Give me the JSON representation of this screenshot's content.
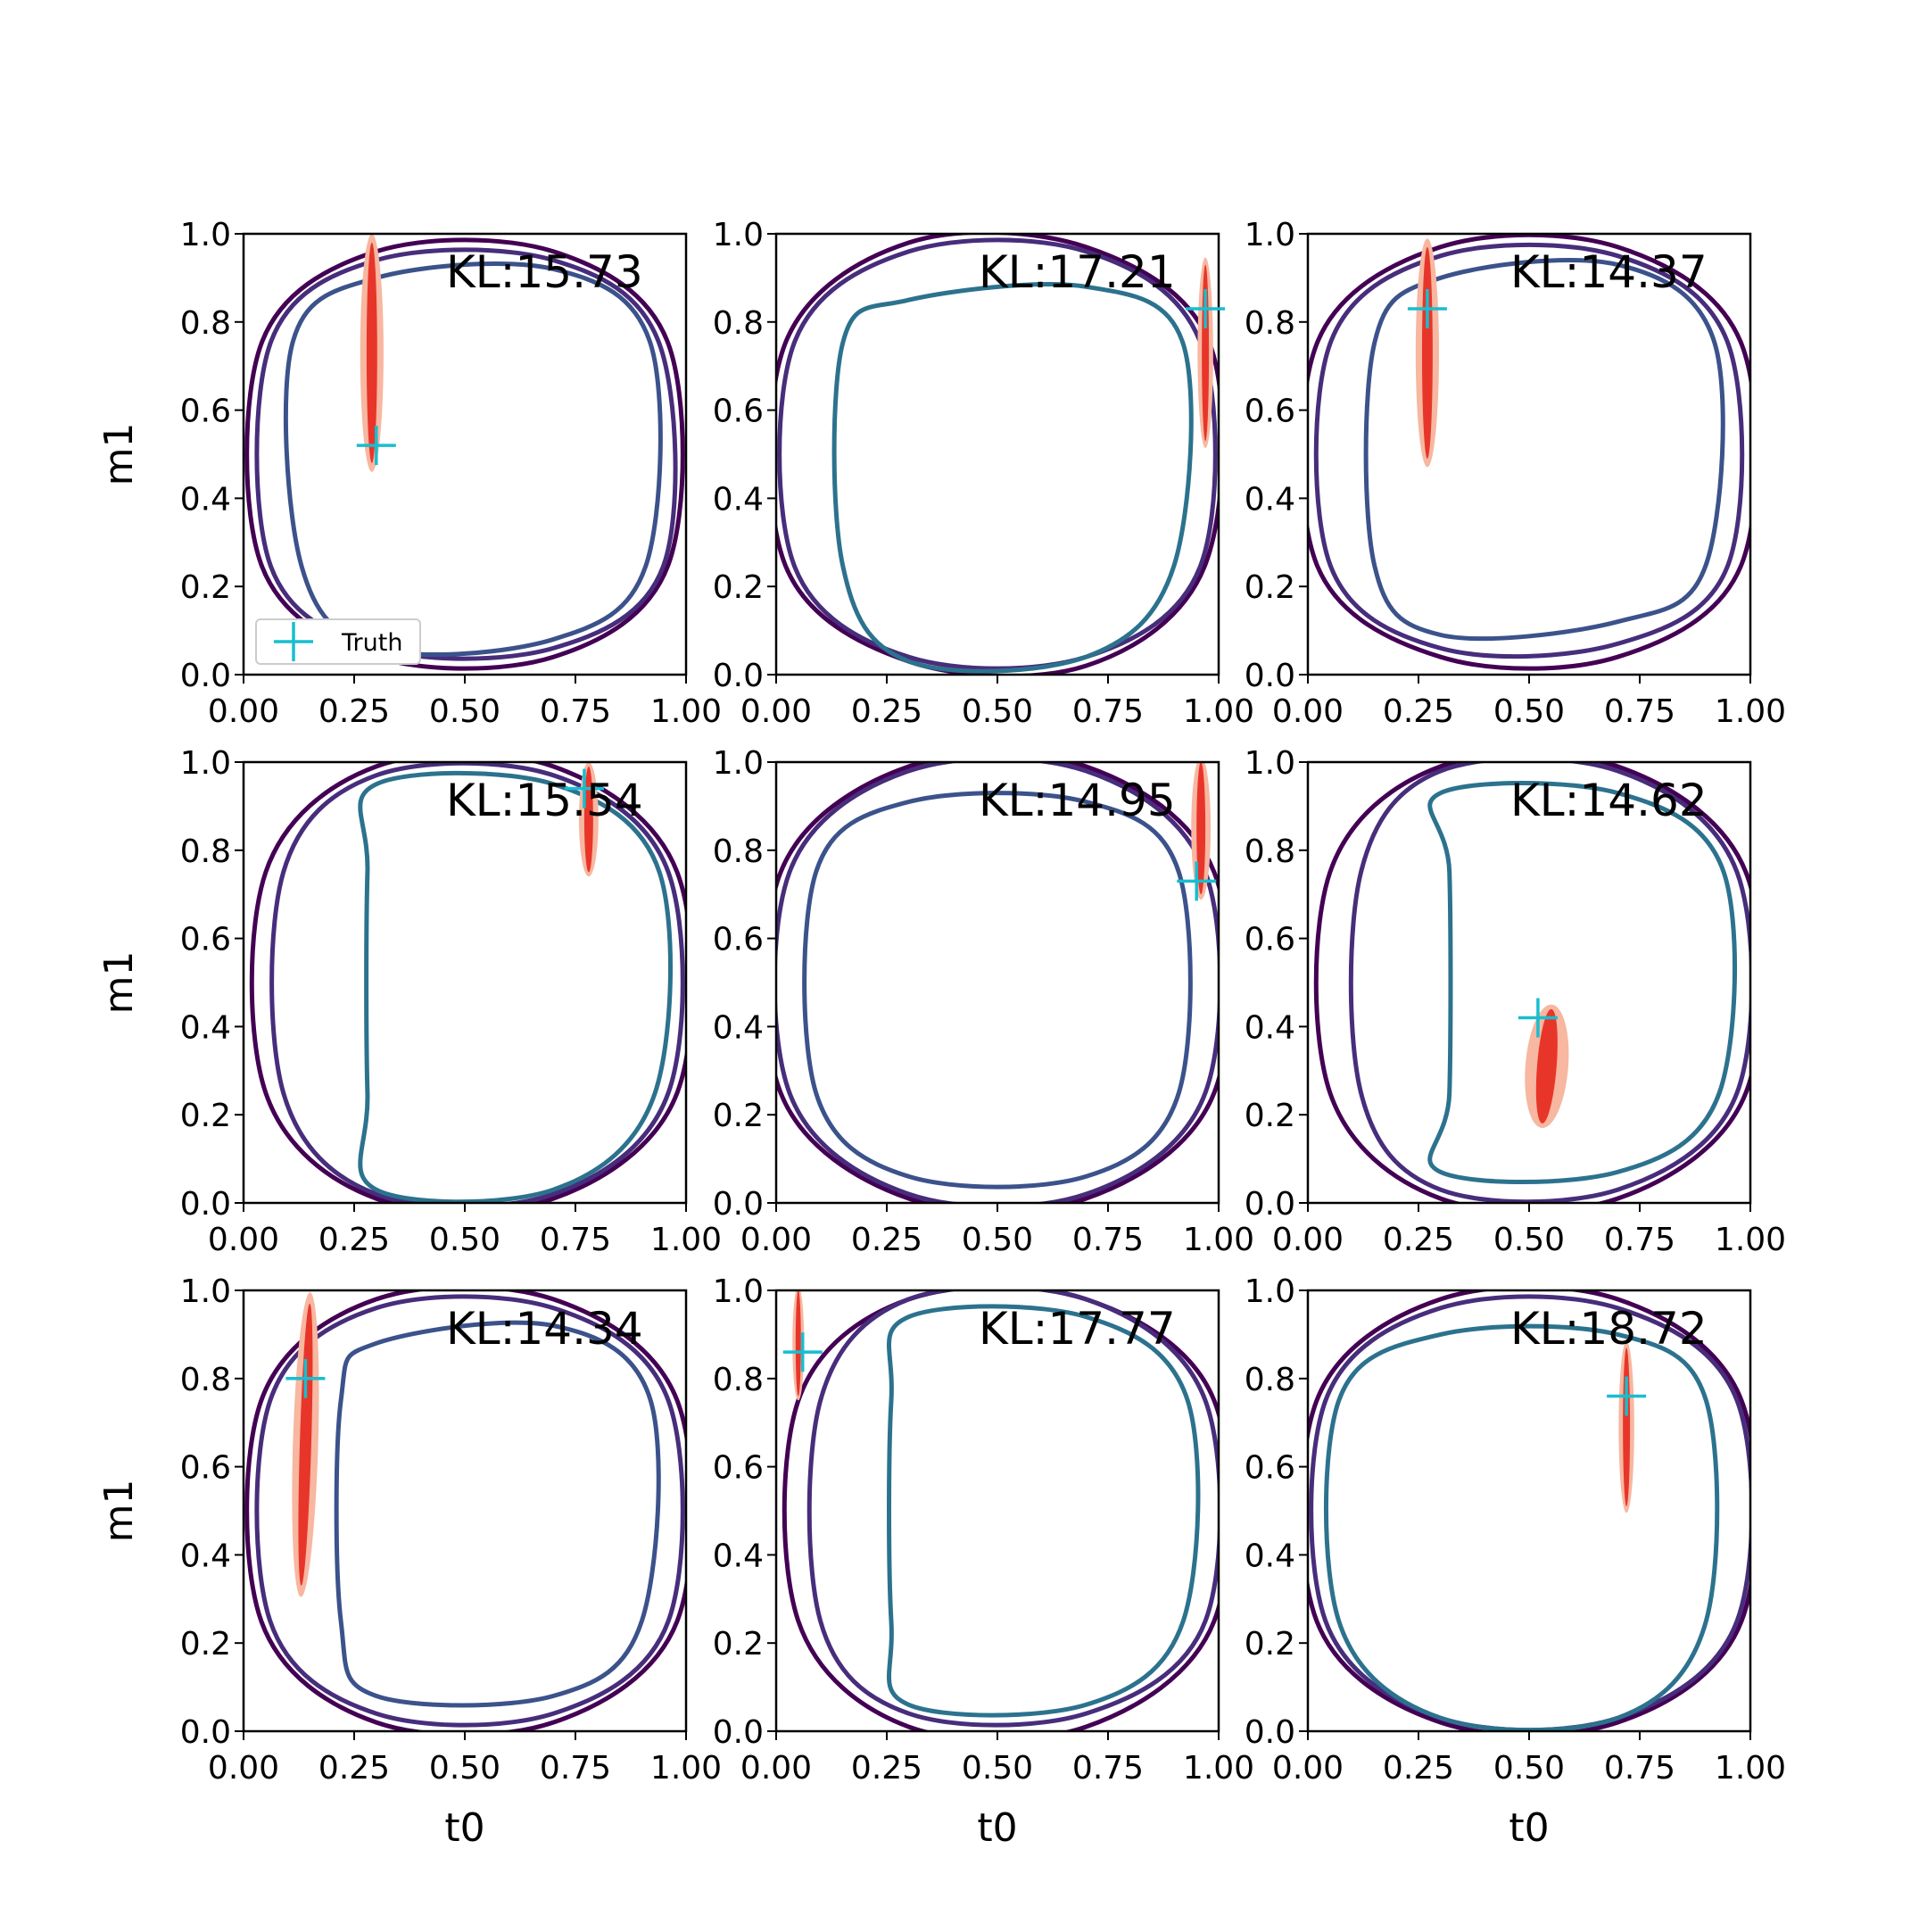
{
  "chart_data": {
    "type": "contour",
    "layout": "3x3",
    "xlabel": "t0",
    "ylabel": "m1",
    "xlim": [
      0,
      1
    ],
    "ylim": [
      0,
      1
    ],
    "xticks": [
      "0.00",
      "0.25",
      "0.50",
      "0.75",
      "1.00"
    ],
    "yticks": [
      "0.0",
      "0.2",
      "0.4",
      "0.6",
      "0.8",
      "1.0"
    ],
    "legend": {
      "label": "Truth",
      "location": "lower-left",
      "panel": 0
    },
    "colors": {
      "truth_marker": "#17becf",
      "posterior": "#e8352a",
      "posterior_halo": "#f7b7a0",
      "contour_levels": [
        "#440154",
        "#472d7b",
        "#3b528b",
        "#2c728e"
      ]
    },
    "panels": [
      {
        "kl": "KL:15.73",
        "truth": [
          0.3,
          0.52
        ],
        "inner_color": "#3b528b",
        "posterior": {
          "t0": 0.29,
          "m1": 0.73,
          "half_len": 0.25,
          "width": 0.012,
          "angle": 0
        },
        "contours": [
          [
            0.04,
            0.04,
            0.96,
            0.96,
            0.04,
            0.04,
            0.96,
            0.96
          ],
          [
            0.06,
            0.06,
            0.95,
            0.94,
            0.06,
            0.06,
            0.94,
            0.94
          ],
          [
            0.13,
            0.06,
            0.91,
            0.92,
            0.11,
            0.08,
            0.92,
            0.9
          ]
        ]
      },
      {
        "kl": "KL:17.21",
        "truth": [
          0.97,
          0.83
        ],
        "inner_color": "#2c728e",
        "posterior": {
          "t0": 0.97,
          "m1": 0.73,
          "half_len": 0.2,
          "width": 0.008,
          "angle": 0
        },
        "contours": [
          [
            0.02,
            0.03,
            0.97,
            0.97,
            0.02,
            0.02,
            0.98,
            0.98
          ],
          [
            0.04,
            0.04,
            0.96,
            0.96,
            0.04,
            0.04,
            0.96,
            0.96
          ],
          [
            0.15,
            0.03,
            0.9,
            0.88,
            0.15,
            0.04,
            0.92,
            0.85
          ]
        ]
      },
      {
        "kl": "KL:14.37",
        "truth": [
          0.27,
          0.83
        ],
        "inner_color": "#3b528b",
        "posterior": {
          "t0": 0.27,
          "m1": 0.73,
          "half_len": 0.24,
          "width": 0.012,
          "angle": 0
        },
        "contours": [
          [
            0.02,
            0.04,
            0.98,
            0.97,
            0.02,
            0.04,
            0.98,
            0.97
          ],
          [
            0.05,
            0.06,
            0.95,
            0.95,
            0.05,
            0.07,
            0.95,
            0.95
          ],
          [
            0.15,
            0.09,
            0.9,
            0.93,
            0.15,
            0.12,
            0.92,
            0.9
          ]
        ]
      },
      {
        "kl": "KL:15.54",
        "truth": [
          0.77,
          0.94
        ],
        "inner_color": "#2c728e",
        "posterior": {
          "t0": 0.78,
          "m1": 0.87,
          "half_len": 0.12,
          "width": 0.01,
          "angle": 0
        },
        "contours": [
          [
            0.05,
            0.01,
            0.98,
            0.99,
            0.05,
            0.01,
            0.98,
            0.99
          ],
          [
            0.09,
            0.02,
            0.96,
            0.97,
            0.09,
            0.02,
            0.96,
            0.97
          ],
          [
            0.28,
            0.03,
            0.93,
            0.95,
            0.28,
            0.03,
            0.94,
            0.95
          ]
        ]
      },
      {
        "kl": "KL:14.95",
        "truth": [
          0.95,
          0.73
        ],
        "inner_color": "#3b528b",
        "posterior": {
          "t0": 0.96,
          "m1": 0.85,
          "half_len": 0.15,
          "width": 0.01,
          "angle": 0
        },
        "contours": [
          [
            0.01,
            0.01,
            0.99,
            0.99,
            0.01,
            0.01,
            0.99,
            0.99
          ],
          [
            0.03,
            0.02,
            0.97,
            0.98,
            0.03,
            0.02,
            0.97,
            0.98
          ],
          [
            0.09,
            0.06,
            0.91,
            0.91,
            0.09,
            0.06,
            0.91,
            0.91
          ]
        ]
      },
      {
        "kl": "KL:14.62",
        "truth": [
          0.52,
          0.42
        ],
        "inner_color": "#2c728e",
        "posterior": {
          "t0": 0.54,
          "m1": 0.31,
          "half_len": 0.13,
          "width": 0.022,
          "angle": 0.08
        },
        "contours": [
          [
            0.05,
            0.01,
            0.99,
            0.99,
            0.05,
            0.01,
            0.99,
            0.99
          ],
          [
            0.12,
            0.03,
            0.97,
            0.98,
            0.12,
            0.03,
            0.97,
            0.98
          ],
          [
            0.32,
            0.07,
            0.93,
            0.93,
            0.32,
            0.07,
            0.94,
            0.93
          ]
        ]
      },
      {
        "kl": "KL:14.34",
        "truth": [
          0.14,
          0.8
        ],
        "inner_color": "#3b528b",
        "posterior": {
          "t0": 0.14,
          "m1": 0.65,
          "half_len": 0.32,
          "width": 0.013,
          "angle": 0.03
        },
        "contours": [
          [
            0.04,
            0.02,
            0.98,
            0.98,
            0.04,
            0.02,
            0.98,
            0.98
          ],
          [
            0.06,
            0.04,
            0.96,
            0.96,
            0.06,
            0.04,
            0.96,
            0.96
          ],
          [
            0.22,
            0.08,
            0.9,
            0.92,
            0.22,
            0.08,
            0.92,
            0.88
          ]
        ]
      },
      {
        "kl": "KL:17.77",
        "truth": [
          0.06,
          0.86
        ],
        "inner_color": "#2c728e",
        "posterior": {
          "t0": 0.05,
          "m1": 0.88,
          "half_len": 0.12,
          "width": 0.006,
          "angle": 0
        },
        "contours": [
          [
            0.05,
            0.01,
            0.99,
            0.98,
            0.05,
            0.01,
            0.99,
            0.98
          ],
          [
            0.1,
            0.04,
            0.97,
            0.98,
            0.1,
            0.04,
            0.97,
            0.98
          ],
          [
            0.26,
            0.06,
            0.92,
            0.94,
            0.26,
            0.06,
            0.93,
            0.94
          ]
        ]
      },
      {
        "kl": "KL:18.72",
        "truth": [
          0.72,
          0.76
        ],
        "inner_color": "#2c728e",
        "posterior": {
          "t0": 0.72,
          "m1": 0.69,
          "half_len": 0.18,
          "width": 0.008,
          "angle": 0
        },
        "contours": [
          [
            0.02,
            0.02,
            0.98,
            0.98,
            0.02,
            0.02,
            0.98,
            0.98
          ],
          [
            0.04,
            0.03,
            0.97,
            0.96,
            0.04,
            0.03,
            0.97,
            0.96
          ],
          [
            0.07,
            0.03,
            0.9,
            0.9,
            0.07,
            0.03,
            0.9,
            0.9
          ]
        ]
      }
    ]
  }
}
